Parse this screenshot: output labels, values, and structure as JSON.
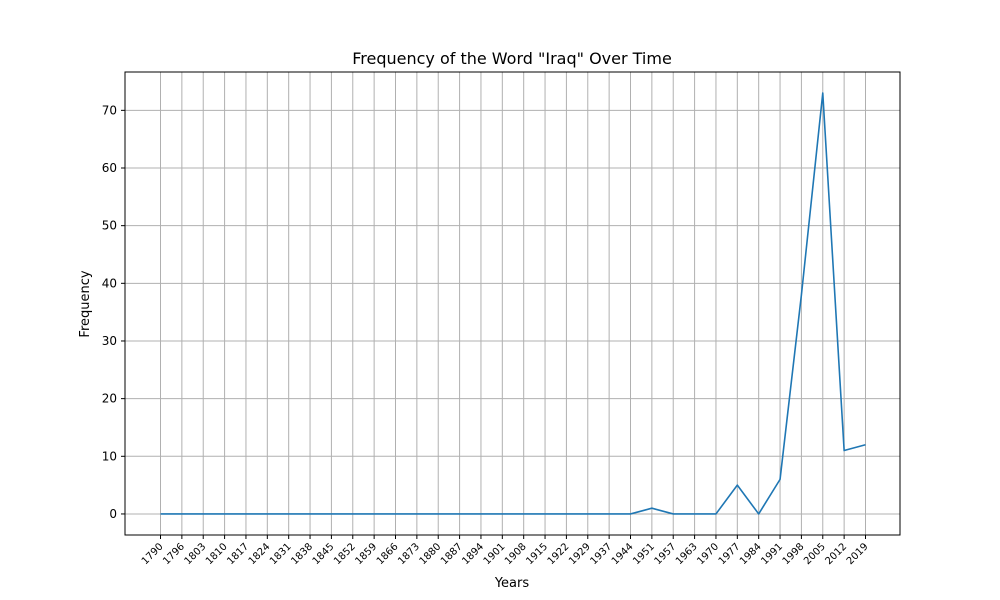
{
  "chart_data": {
    "type": "line",
    "title": "Frequency of the Word \"Iraq\" Over Time",
    "xlabel": "Years",
    "ylabel": "Frequency",
    "ylim": [
      -3.65,
      76.65
    ],
    "yticks": [
      0,
      10,
      20,
      30,
      40,
      50,
      60,
      70
    ],
    "grid": true,
    "x": [
      "1790",
      "1796",
      "1803",
      "1810",
      "1817",
      "1824",
      "1831",
      "1838",
      "1845",
      "1852",
      "1859",
      "1866",
      "1873",
      "1880",
      "1887",
      "1894",
      "1901",
      "1908",
      "1915",
      "1922",
      "1929",
      "1937",
      "1944",
      "1951",
      "1957",
      "1963",
      "1970",
      "1977",
      "1984",
      "1991",
      "1998",
      "2005",
      "2012",
      "2019"
    ],
    "series": [
      {
        "color": "#1f77b4",
        "values": [
          0,
          0,
          0,
          0,
          0,
          0,
          0,
          0,
          0,
          0,
          0,
          0,
          0,
          0,
          0,
          0,
          0,
          0,
          0,
          0,
          0,
          0,
          0,
          1,
          0,
          0,
          0,
          5,
          0,
          6,
          38,
          73,
          11,
          12
        ]
      }
    ]
  }
}
